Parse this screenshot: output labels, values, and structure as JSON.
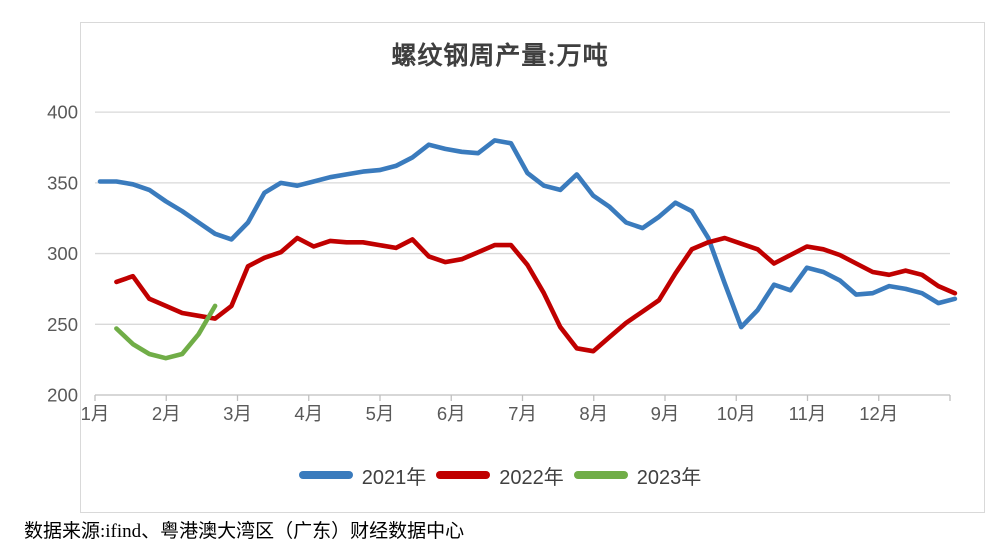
{
  "chart_data": {
    "type": "line",
    "title": "螺纹钢周产量:万吨",
    "source_note": "数据来源:ifind、粤港澳大湾区（广东）财经数据中心",
    "x_unit": "week-of-year",
    "x_tick_labels": [
      "1月",
      "2月",
      "3月",
      "4月",
      "5月",
      "6月",
      "7月",
      "8月",
      "9月",
      "10月",
      "11月",
      "12月"
    ],
    "y_ticks": [
      200,
      250,
      300,
      350,
      400
    ],
    "ylim": [
      200,
      412
    ],
    "grid": "horizontal",
    "legend_position": "bottom",
    "colors": {
      "gridline": "#d9d9d9",
      "axis_line": "#bfbfbf",
      "axis_text": "#595959"
    },
    "series": [
      {
        "name": "2021年",
        "color": "#3a7bbd",
        "start_week": 1,
        "values": [
          351,
          351,
          349,
          345,
          337,
          330,
          322,
          314,
          310,
          322,
          343,
          350,
          348,
          351,
          354,
          356,
          358,
          359,
          362,
          368,
          377,
          374,
          372,
          371,
          380,
          378,
          357,
          348,
          345,
          356,
          341,
          333,
          322,
          318,
          326,
          336,
          330,
          311,
          279,
          248,
          260,
          278,
          274,
          290,
          287,
          281,
          271,
          272,
          277,
          275,
          272,
          265,
          268
        ]
      },
      {
        "name": "2022年",
        "color": "#c00000",
        "start_week": 2,
        "values": [
          280,
          284,
          268,
          263,
          258,
          256,
          254,
          263,
          291,
          297,
          301,
          311,
          305,
          309,
          308,
          308,
          306,
          304,
          310,
          298,
          294,
          296,
          301,
          306,
          306,
          292,
          272,
          248,
          233,
          231,
          241,
          251,
          259,
          267,
          286,
          303,
          308,
          311,
          307,
          303,
          293,
          299,
          305,
          303,
          299,
          293,
          287,
          285,
          288,
          285,
          277,
          272
        ]
      },
      {
        "name": "2023年",
        "color": "#70ad47",
        "start_week": 2,
        "values": [
          247,
          236,
          229,
          226,
          229,
          243,
          263
        ]
      }
    ]
  }
}
